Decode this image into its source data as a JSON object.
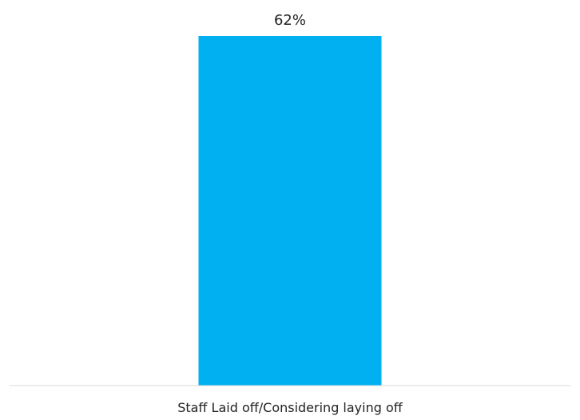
{
  "chart_data": {
    "type": "bar",
    "categories": [
      "Staff Laid off/Considering laying off"
    ],
    "values": [
      62
    ],
    "data_labels": [
      "62%"
    ],
    "ylim": [
      0,
      65
    ],
    "grid": false,
    "legend": "none",
    "title": "",
    "xlabel": "",
    "ylabel": "",
    "colors": {
      "bar": "#00B0F0",
      "baseline": "#D9D9D9",
      "text": "#222222"
    }
  }
}
